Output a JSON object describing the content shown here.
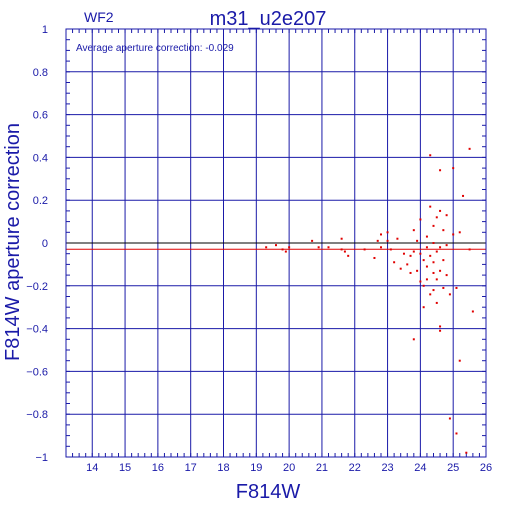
{
  "chart_data": {
    "type": "scatter",
    "frame_label": "WF2",
    "title": "m31_u2e207",
    "annotation": "Average aperture correction: -0.029",
    "xlabel": "F814W",
    "ylabel": "F814W aperture correction",
    "xlim": [
      13.2,
      26.0
    ],
    "ylim": [
      -1.0,
      1.0
    ],
    "xticks": [
      14,
      15,
      16,
      17,
      18,
      19,
      20,
      21,
      22,
      23,
      24,
      25,
      26
    ],
    "yticks": [
      -1,
      -0.8,
      -0.6,
      -0.4,
      -0.2,
      0,
      0.2,
      0.4,
      0.6,
      0.8,
      1
    ],
    "ytick_labels": [
      "−1",
      "−0.8",
      "−0.6",
      "−0.4",
      "−0.2",
      "0",
      "0.2",
      "0.4",
      "0.6",
      "0.8",
      "1"
    ],
    "grid": true,
    "reference_lines": [
      {
        "y": 0.0,
        "color": "#000000"
      },
      {
        "y": -0.029,
        "color": "#e00000"
      }
    ],
    "colors": {
      "axes": "#1a1aa8",
      "grid": "#1a1aa8",
      "points": "#e00000",
      "zero_line": "#000000",
      "mean_line": "#e00000"
    },
    "series": [
      {
        "points": [
          [
            19.3,
            -0.02
          ],
          [
            19.6,
            -0.01
          ],
          [
            19.8,
            -0.03
          ],
          [
            19.9,
            -0.04
          ],
          [
            20.0,
            -0.02
          ],
          [
            20.7,
            0.01
          ],
          [
            20.9,
            -0.02
          ],
          [
            21.2,
            -0.02
          ],
          [
            21.6,
            -0.03
          ],
          [
            21.6,
            0.02
          ],
          [
            21.7,
            -0.04
          ],
          [
            21.8,
            -0.06
          ],
          [
            22.3,
            -0.03
          ],
          [
            22.6,
            -0.07
          ],
          [
            22.7,
            0.01
          ],
          [
            22.8,
            0.04
          ],
          [
            22.8,
            -0.02
          ],
          [
            23.0,
            0.01
          ],
          [
            23.0,
            0.05
          ],
          [
            23.1,
            -0.03
          ],
          [
            23.2,
            -0.09
          ],
          [
            23.3,
            0.02
          ],
          [
            23.4,
            -0.12
          ],
          [
            23.5,
            -0.05
          ],
          [
            23.6,
            -0.1
          ],
          [
            23.7,
            -0.14
          ],
          [
            23.7,
            -0.06
          ],
          [
            23.8,
            0.06
          ],
          [
            23.8,
            -0.04
          ],
          [
            23.8,
            -0.45
          ],
          [
            23.9,
            0.01
          ],
          [
            23.9,
            -0.13
          ],
          [
            24.0,
            0.11
          ],
          [
            24.0,
            -0.05
          ],
          [
            24.0,
            -0.18
          ],
          [
            24.1,
            -0.08
          ],
          [
            24.1,
            -0.2
          ],
          [
            24.1,
            -0.3
          ],
          [
            24.2,
            -0.02
          ],
          [
            24.2,
            0.03
          ],
          [
            24.2,
            -0.11
          ],
          [
            24.2,
            -0.17
          ],
          [
            24.3,
            0.41
          ],
          [
            24.3,
            0.17
          ],
          [
            24.3,
            -0.06
          ],
          [
            24.3,
            -0.24
          ],
          [
            24.4,
            0.08
          ],
          [
            24.4,
            0.0
          ],
          [
            24.4,
            -0.14
          ],
          [
            24.4,
            -0.22
          ],
          [
            24.4,
            -0.09
          ],
          [
            24.5,
            0.12
          ],
          [
            24.5,
            -0.04
          ],
          [
            24.5,
            -0.17
          ],
          [
            24.5,
            -0.28
          ],
          [
            24.6,
            0.34
          ],
          [
            24.6,
            0.15
          ],
          [
            24.6,
            -0.02
          ],
          [
            24.6,
            -0.13
          ],
          [
            24.6,
            -0.39
          ],
          [
            24.6,
            -0.41
          ],
          [
            24.7,
            0.06
          ],
          [
            24.7,
            -0.08
          ],
          [
            24.7,
            -0.21
          ],
          [
            24.8,
            0.13
          ],
          [
            24.8,
            -0.01
          ],
          [
            24.8,
            -0.15
          ],
          [
            24.9,
            -0.82
          ],
          [
            24.9,
            -0.24
          ],
          [
            25.0,
            0.35
          ],
          [
            25.0,
            0.04
          ],
          [
            25.1,
            -0.89
          ],
          [
            25.1,
            -0.21
          ],
          [
            25.2,
            0.05
          ],
          [
            25.2,
            -0.55
          ],
          [
            25.3,
            0.22
          ],
          [
            25.4,
            -0.98
          ],
          [
            25.5,
            0.44
          ],
          [
            25.5,
            -0.03
          ],
          [
            25.6,
            -0.32
          ]
        ]
      }
    ]
  }
}
